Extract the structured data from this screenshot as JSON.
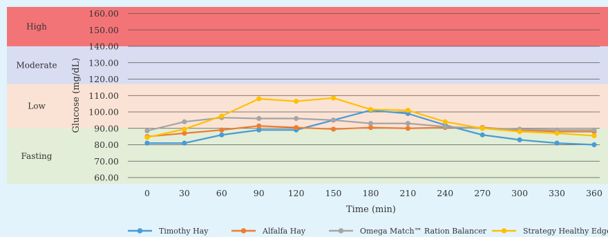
{
  "chart_data": {
    "type": "line",
    "title": "",
    "xlabel": "Time (min)",
    "ylabel": "Glucose (mg/dL)",
    "ylim": [
      60,
      160
    ],
    "y_ticks": [
      "60.00",
      "70.00",
      "80.00",
      "90.00",
      "100.00",
      "110.00",
      "120.00",
      "130.00",
      "140.00",
      "150.00",
      "160.00"
    ],
    "x": [
      0,
      30,
      60,
      90,
      120,
      150,
      180,
      210,
      240,
      270,
      300,
      330,
      360
    ],
    "x_tick_labels": [
      "0",
      "30",
      "60",
      "90",
      "120",
      "150",
      "180",
      "210",
      "240",
      "270",
      "300",
      "330",
      "360"
    ],
    "grid": "horizontal",
    "legend": "bottom",
    "zones": [
      {
        "label": "High",
        "from": 140,
        "to": 163,
        "color": "#f37477"
      },
      {
        "label": "Moderate",
        "from": 117,
        "to": 140,
        "color": "#d9ddf2"
      },
      {
        "label": "Low",
        "from": 90,
        "to": 117,
        "color": "#fae3d5"
      },
      {
        "label": "Fasting",
        "from": 56,
        "to": 90,
        "color": "#e2eed8"
      }
    ],
    "series": [
      {
        "name": "Timothy Hay",
        "color": "#4a9bd4",
        "values": [
          81,
          81,
          86,
          89,
          89,
          95,
          101,
          99,
          92,
          86,
          83,
          81,
          80
        ]
      },
      {
        "name": "Alfalfa Hay",
        "color": "#ed7d31",
        "values": [
          85,
          87,
          89,
          91.5,
          90.5,
          89.5,
          90.5,
          90,
          90.5,
          90.5,
          89,
          88,
          88
        ]
      },
      {
        "name": "Omega Match™ Ration Balancer",
        "color": "#a5a5a5",
        "values": [
          88.5,
          94,
          96.5,
          96,
          96,
          95,
          93,
          93,
          91,
          90,
          89.5,
          89,
          89
        ]
      },
      {
        "name": "Strategy Healthy Edge®",
        "color": "#ffc000",
        "values": [
          84.5,
          89.5,
          97.5,
          108,
          106.5,
          108.5,
          101.5,
          101,
          94,
          90,
          88,
          87,
          85.5
        ]
      }
    ]
  }
}
